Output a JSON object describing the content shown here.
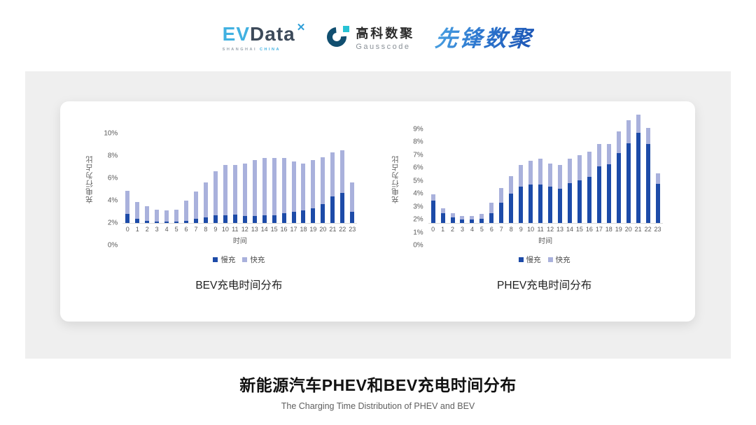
{
  "header": {
    "logos": {
      "evdata": {
        "ev": "EV",
        "data": "Data",
        "mark": "x-icon",
        "sub_left": "SHANGHAI",
        "sub_right": "CHINA"
      },
      "gausscode": {
        "cn": "高科数聚",
        "en": "Gausscode"
      },
      "pioneer": {
        "text": "先锋数聚"
      }
    }
  },
  "colors": {
    "slow": "#1d4ba8",
    "fast": "#a9b1dc",
    "panel": "#efefef",
    "accent_cyan": "#41b1e1"
  },
  "legend": {
    "slow": "慢充",
    "fast": "快充"
  },
  "chart_data": [
    {
      "type": "bar",
      "stacked": true,
      "title": "BEV充电时间分布",
      "xlabel": "时间",
      "ylabel": "充电行为占比",
      "categories": [
        0,
        1,
        2,
        3,
        4,
        5,
        6,
        7,
        8,
        9,
        10,
        11,
        12,
        13,
        14,
        15,
        16,
        17,
        18,
        19,
        20,
        21,
        22,
        23
      ],
      "series": [
        {
          "name": "慢充",
          "values": [
            0.8,
            0.4,
            0.2,
            0.15,
            0.1,
            0.15,
            0.2,
            0.4,
            0.5,
            0.7,
            0.7,
            0.75,
            0.6,
            0.65,
            0.7,
            0.7,
            0.85,
            1.0,
            1.1,
            1.3,
            1.7,
            2.35,
            2.7,
            1.0
          ]
        },
        {
          "name": "快充",
          "values": [
            2.1,
            1.5,
            1.3,
            1.05,
            1.0,
            1.05,
            1.8,
            2.4,
            3.1,
            3.9,
            4.5,
            4.45,
            4.7,
            4.95,
            5.1,
            5.1,
            4.95,
            4.5,
            4.2,
            4.3,
            4.2,
            3.95,
            3.8,
            2.6
          ]
        }
      ],
      "ylim": [
        0,
        10
      ],
      "ytick_step": 2,
      "ytick_suffix": "%",
      "grid": false,
      "legend_position": "bottom"
    },
    {
      "type": "bar",
      "stacked": true,
      "title": "PHEV充电时间分布",
      "xlabel": "时间",
      "ylabel": "充电行为占比",
      "categories": [
        0,
        1,
        2,
        3,
        4,
        5,
        6,
        7,
        8,
        9,
        10,
        11,
        12,
        13,
        14,
        15,
        16,
        17,
        18,
        19,
        20,
        21,
        22,
        23
      ],
      "series": [
        {
          "name": "慢充",
          "values": [
            1.75,
            0.75,
            0.45,
            0.25,
            0.25,
            0.3,
            0.75,
            1.6,
            2.3,
            2.8,
            3.0,
            3.0,
            2.8,
            2.65,
            3.1,
            3.3,
            3.6,
            4.4,
            4.55,
            5.4,
            6.2,
            7.0,
            6.15,
            3.05
          ]
        },
        {
          "name": "快充",
          "values": [
            0.45,
            0.4,
            0.3,
            0.3,
            0.3,
            0.4,
            0.85,
            1.1,
            1.35,
            1.7,
            1.8,
            2.0,
            1.8,
            1.85,
            1.9,
            1.95,
            1.95,
            1.75,
            1.6,
            1.7,
            1.75,
            1.4,
            1.2,
            0.8
          ]
        }
      ],
      "ylim": [
        0,
        9
      ],
      "ytick_step": 1,
      "ytick_suffix": "%",
      "grid": false,
      "legend_position": "bottom"
    }
  ],
  "footer": {
    "title": "新能源汽车PHEV和BEV充电时间分布",
    "subtitle": "The Charging Time Distribution of PHEV and BEV"
  }
}
